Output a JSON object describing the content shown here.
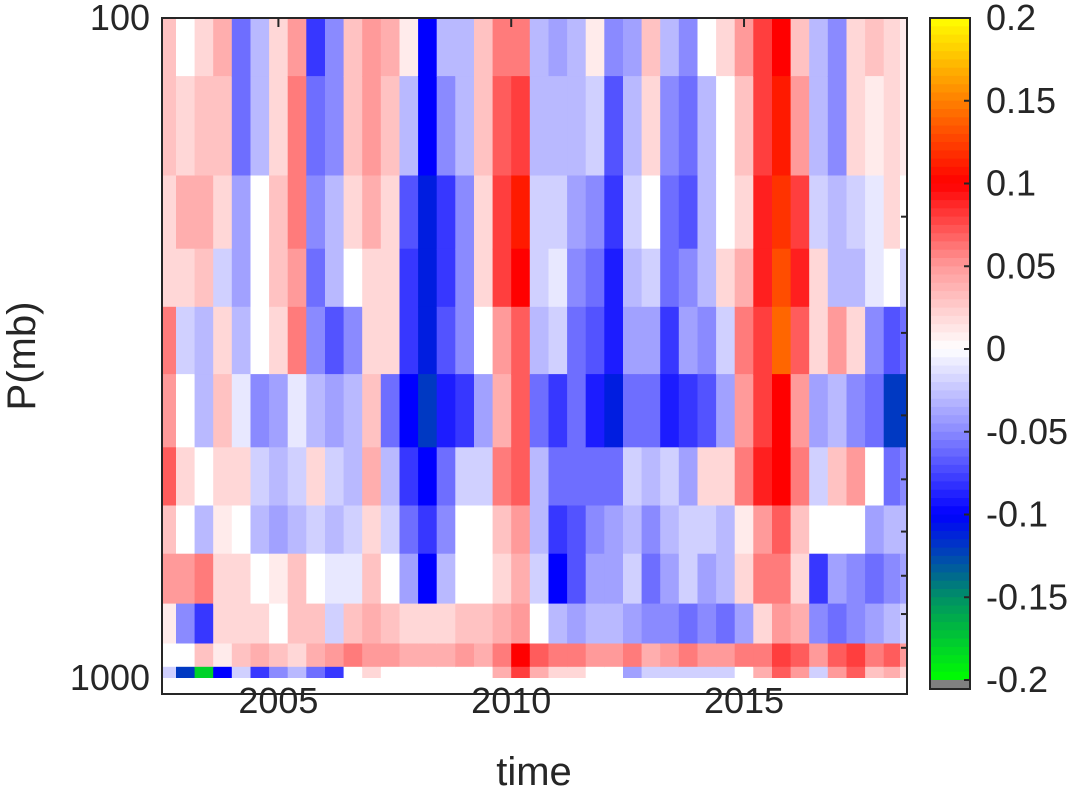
{
  "chart_data": {
    "type": "heatmap",
    "title": "",
    "xlabel": "time",
    "ylabel": "P(mb)",
    "x_ticks": [
      "2005",
      "2010",
      "2015"
    ],
    "x_tick_values": [
      2005,
      2010,
      2015
    ],
    "xlim": [
      2002.5,
      2018.5
    ],
    "y_ticks": [
      "100",
      "1000"
    ],
    "y_tick_values": [
      100,
      1000
    ],
    "ylim": [
      100,
      1000
    ],
    "y_scale": "log",
    "y_direction": "reversed",
    "y_minor_ticks": [
      200,
      300,
      400,
      500,
      600,
      700,
      800,
      900
    ],
    "colorbar": {
      "range": [
        -0.2,
        0.2
      ],
      "ticks": [
        "0.2",
        "0.15",
        "0.1",
        "0.05",
        "0",
        "-0.05",
        "-0.1",
        "-0.15",
        "-0.2"
      ],
      "tick_values": [
        0.2,
        0.15,
        0.1,
        0.05,
        0,
        -0.05,
        -0.1,
        -0.15,
        -0.2
      ],
      "colormap_stops": [
        {
          "value": -0.2,
          "color": "#00ff00"
        },
        {
          "value": -0.15,
          "color": "#008f66"
        },
        {
          "value": -0.1,
          "color": "#0000ff"
        },
        {
          "value": -0.05,
          "color": "#8a8aff"
        },
        {
          "value": 0,
          "color": "#ffffff"
        },
        {
          "value": 0.05,
          "color": "#ff9a9a"
        },
        {
          "value": 0.1,
          "color": "#ff0000"
        },
        {
          "value": 0.15,
          "color": "#ff8000"
        },
        {
          "value": 0.2,
          "color": "#ffff00"
        }
      ],
      "under_color": "#808080"
    },
    "pressure_levels": [
      100,
      150,
      200,
      250,
      300,
      400,
      500,
      600,
      700,
      850,
      925,
      1000
    ],
    "series": [
      {
        "time": 2002.6,
        "values": [
          0.03,
          0.03,
          0.02,
          0.02,
          0.06,
          0.05,
          0.07,
          0.03,
          0.05,
          0.01,
          0.0,
          -0.02
        ]
      },
      {
        "time": 2003.0,
        "values": [
          0.0,
          0.02,
          0.04,
          0.02,
          -0.02,
          0.0,
          0.02,
          0.0,
          0.05,
          -0.05,
          0.0,
          -0.12
        ]
      },
      {
        "time": 2003.4,
        "values": [
          0.02,
          0.03,
          0.04,
          0.03,
          -0.03,
          -0.03,
          0.0,
          -0.03,
          0.06,
          -0.08,
          0.03,
          -0.18
        ]
      },
      {
        "time": 2003.8,
        "values": [
          0.04,
          0.03,
          0.02,
          -0.02,
          0.02,
          0.03,
          0.02,
          0.01,
          0.02,
          0.02,
          0.01,
          -0.1
        ]
      },
      {
        "time": 2004.2,
        "values": [
          -0.06,
          -0.06,
          -0.04,
          -0.04,
          -0.03,
          -0.01,
          0.02,
          0.0,
          0.02,
          0.02,
          0.03,
          -0.02
        ]
      },
      {
        "time": 2004.6,
        "values": [
          -0.03,
          -0.03,
          0.0,
          0.0,
          0.0,
          -0.05,
          -0.02,
          -0.03,
          0.0,
          0.02,
          0.04,
          -0.08
        ]
      },
      {
        "time": 2005.0,
        "values": [
          0.02,
          0.02,
          0.03,
          0.03,
          0.02,
          -0.04,
          -0.03,
          -0.04,
          0.01,
          0.0,
          0.03,
          -0.05
        ]
      },
      {
        "time": 2005.4,
        "values": [
          0.05,
          0.06,
          0.06,
          0.05,
          0.06,
          -0.01,
          -0.02,
          -0.03,
          0.03,
          0.03,
          0.02,
          -0.03
        ]
      },
      {
        "time": 2005.8,
        "values": [
          -0.08,
          -0.06,
          -0.05,
          -0.06,
          -0.05,
          -0.03,
          0.02,
          -0.02,
          0.0,
          0.03,
          0.04,
          -0.06
        ]
      },
      {
        "time": 2006.2,
        "values": [
          -0.05,
          -0.05,
          -0.03,
          -0.03,
          -0.07,
          -0.04,
          -0.02,
          -0.03,
          -0.01,
          -0.02,
          0.05,
          -0.08
        ]
      },
      {
        "time": 2006.6,
        "values": [
          0.03,
          0.03,
          0.02,
          0.0,
          -0.05,
          -0.03,
          -0.03,
          -0.02,
          -0.01,
          0.03,
          0.06,
          0.0
        ]
      },
      {
        "time": 2007.0,
        "values": [
          0.05,
          0.05,
          0.04,
          0.02,
          0.02,
          0.03,
          0.04,
          0.02,
          0.03,
          0.04,
          0.05,
          0.02
        ]
      },
      {
        "time": 2007.4,
        "values": [
          0.04,
          0.03,
          0.02,
          0.02,
          0.02,
          -0.06,
          -0.03,
          -0.02,
          0.0,
          0.03,
          0.05,
          0.0
        ]
      },
      {
        "time": 2007.8,
        "values": [
          0.01,
          -0.03,
          -0.07,
          -0.08,
          -0.08,
          -0.1,
          -0.08,
          -0.06,
          -0.04,
          0.02,
          0.04,
          0.0
        ]
      },
      {
        "time": 2008.2,
        "values": [
          -0.1,
          -0.1,
          -0.11,
          -0.11,
          -0.11,
          -0.12,
          -0.1,
          -0.08,
          -0.1,
          0.02,
          0.04,
          0.0
        ]
      },
      {
        "time": 2008.6,
        "values": [
          -0.03,
          -0.05,
          -0.08,
          -0.08,
          -0.07,
          -0.09,
          -0.06,
          -0.05,
          -0.03,
          0.02,
          0.04,
          0.0
        ]
      },
      {
        "time": 2009.0,
        "values": [
          -0.03,
          -0.03,
          -0.05,
          -0.05,
          -0.05,
          -0.08,
          -0.02,
          0.0,
          0.0,
          0.03,
          0.05,
          0.0
        ]
      },
      {
        "time": 2009.4,
        "values": [
          0.03,
          0.03,
          0.02,
          0.02,
          0.0,
          -0.04,
          -0.02,
          0.0,
          0.0,
          0.03,
          0.04,
          0.0
        ]
      },
      {
        "time": 2009.8,
        "values": [
          0.06,
          0.07,
          0.08,
          0.08,
          0.05,
          0.04,
          0.06,
          0.03,
          0.02,
          0.04,
          0.06,
          0.04
        ]
      },
      {
        "time": 2010.2,
        "values": [
          0.06,
          0.08,
          0.11,
          0.1,
          0.07,
          0.07,
          0.07,
          0.05,
          0.04,
          0.05,
          0.1,
          0.08
        ]
      },
      {
        "time": 2010.6,
        "values": [
          -0.03,
          -0.03,
          -0.02,
          -0.02,
          -0.03,
          -0.06,
          -0.03,
          -0.03,
          -0.02,
          0.0,
          0.07,
          0.04
        ]
      },
      {
        "time": 2011.0,
        "values": [
          -0.04,
          -0.03,
          -0.02,
          -0.01,
          -0.02,
          -0.08,
          -0.06,
          -0.08,
          -0.1,
          -0.03,
          0.06,
          0.02
        ]
      },
      {
        "time": 2011.4,
        "values": [
          -0.03,
          -0.03,
          -0.04,
          -0.05,
          -0.06,
          -0.06,
          -0.06,
          -0.07,
          -0.07,
          -0.04,
          0.06,
          0.02
        ]
      },
      {
        "time": 2011.8,
        "values": [
          0.01,
          -0.02,
          -0.05,
          -0.06,
          -0.07,
          -0.09,
          -0.06,
          -0.05,
          -0.04,
          -0.03,
          0.05,
          0.0
        ]
      },
      {
        "time": 2012.2,
        "values": [
          -0.05,
          -0.07,
          -0.08,
          -0.09,
          -0.09,
          -0.11,
          -0.06,
          -0.04,
          -0.04,
          -0.03,
          0.05,
          0.0
        ]
      },
      {
        "time": 2012.6,
        "values": [
          -0.04,
          -0.03,
          -0.02,
          -0.03,
          -0.04,
          -0.06,
          -0.02,
          -0.03,
          -0.02,
          -0.04,
          0.06,
          -0.04
        ]
      },
      {
        "time": 2013.0,
        "values": [
          0.03,
          0.02,
          0.0,
          -0.02,
          -0.04,
          -0.06,
          -0.03,
          -0.05,
          -0.06,
          -0.05,
          0.04,
          -0.02
        ]
      },
      {
        "time": 2013.4,
        "values": [
          -0.03,
          -0.05,
          -0.06,
          -0.06,
          -0.08,
          -0.09,
          -0.02,
          -0.03,
          -0.04,
          -0.05,
          0.05,
          -0.02
        ]
      },
      {
        "time": 2013.8,
        "values": [
          -0.05,
          -0.06,
          -0.07,
          -0.05,
          -0.04,
          -0.08,
          -0.04,
          -0.02,
          -0.02,
          -0.06,
          0.06,
          -0.02
        ]
      },
      {
        "time": 2014.2,
        "values": [
          0.0,
          -0.03,
          -0.03,
          -0.03,
          -0.05,
          -0.07,
          0.02,
          -0.02,
          -0.04,
          -0.05,
          0.05,
          -0.02
        ]
      },
      {
        "time": 2014.6,
        "values": [
          0.02,
          0.0,
          0.0,
          0.02,
          -0.02,
          -0.04,
          0.02,
          -0.03,
          -0.03,
          -0.06,
          0.05,
          -0.02
        ]
      },
      {
        "time": 2015.0,
        "values": [
          0.05,
          0.03,
          0.02,
          0.04,
          0.06,
          0.05,
          0.06,
          0.01,
          0.02,
          -0.04,
          0.06,
          0.0
        ]
      },
      {
        "time": 2015.4,
        "values": [
          0.08,
          0.08,
          0.09,
          0.09,
          0.08,
          0.08,
          0.09,
          0.05,
          0.06,
          0.02,
          0.06,
          0.04
        ]
      },
      {
        "time": 2015.8,
        "values": [
          0.1,
          0.11,
          0.12,
          0.13,
          0.14,
          0.1,
          0.1,
          0.07,
          0.06,
          0.05,
          0.08,
          0.07
        ]
      },
      {
        "time": 2016.2,
        "values": [
          0.03,
          0.05,
          0.08,
          0.09,
          0.07,
          0.05,
          0.06,
          0.03,
          0.02,
          0.04,
          0.07,
          0.05
        ]
      },
      {
        "time": 2016.6,
        "values": [
          -0.03,
          -0.03,
          -0.02,
          0.02,
          0.02,
          -0.04,
          -0.02,
          0.0,
          -0.08,
          -0.05,
          0.05,
          -0.02
        ]
      },
      {
        "time": 2017.0,
        "values": [
          -0.05,
          -0.05,
          -0.03,
          -0.03,
          0.05,
          -0.03,
          0.03,
          0.0,
          -0.04,
          -0.06,
          0.07,
          0.05
        ]
      },
      {
        "time": 2017.4,
        "values": [
          0.02,
          0.02,
          -0.02,
          -0.03,
          0.02,
          -0.05,
          0.05,
          0.0,
          -0.05,
          -0.05,
          0.08,
          0.07
        ]
      },
      {
        "time": 2017.8,
        "values": [
          0.03,
          0.01,
          -0.01,
          -0.01,
          -0.05,
          -0.06,
          0.0,
          -0.04,
          -0.06,
          -0.04,
          0.06,
          0.03
        ]
      },
      {
        "time": 2018.2,
        "values": [
          0.02,
          0.02,
          0.02,
          0.0,
          -0.07,
          -0.12,
          -0.06,
          -0.03,
          -0.05,
          -0.03,
          0.07,
          0.04
        ]
      },
      {
        "time": 2018.5,
        "values": [
          0.01,
          0.01,
          0.0,
          -0.02,
          -0.06,
          -0.12,
          -0.05,
          -0.03,
          -0.04,
          -0.02,
          0.05,
          0.02
        ]
      }
    ]
  }
}
